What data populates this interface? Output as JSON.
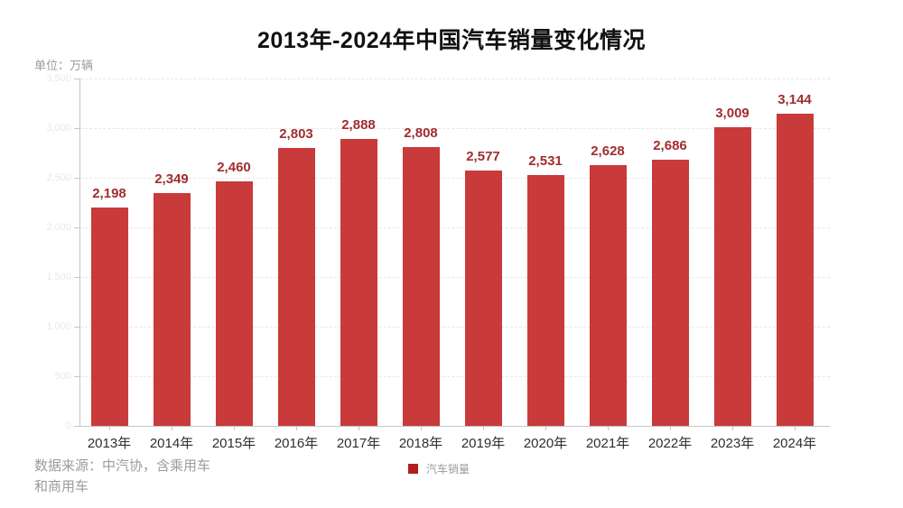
{
  "title": "2013年-2024年中国汽车销量变化情况",
  "unit_label": "单位：万辆",
  "source": {
    "line1": "数据来源：中汽协，含乘用车",
    "line2": "和商用车"
  },
  "legend": {
    "label": "汽车销量",
    "swatch_color": "#b21d1d"
  },
  "colors": {
    "bar": "#c93a3a",
    "value_label": "#a12e2e",
    "grid": "#e7e7e7",
    "axis": "#c6c6c6",
    "y_tick_label": "#e9e9e9",
    "x_tick_label": "#2f2f2f",
    "muted_text": "#9b9b9b",
    "title_text": "#111111",
    "legend_swatch": "#b21d1d"
  },
  "chart_data": {
    "type": "bar",
    "title": "2013年-2024年中国汽车销量变化情况",
    "ylabel": "单位：万辆",
    "series_name": "汽车销量",
    "categories": [
      "2013年",
      "2014年",
      "2015年",
      "2016年",
      "2017年",
      "2018年",
      "2019年",
      "2020年",
      "2021年",
      "2022年",
      "2023年",
      "2024年"
    ],
    "values": [
      2198,
      2349,
      2460,
      2803,
      2888,
      2808,
      2577,
      2531,
      2628,
      2686,
      3009,
      3144
    ],
    "value_labels": [
      "2,198",
      "2,349",
      "2,460",
      "2,803",
      "2,888",
      "2,808",
      "2,577",
      "2,531",
      "2,628",
      "2,686",
      "3,009",
      "3,144"
    ],
    "ylim": [
      0,
      3500
    ],
    "ytick_interval": 500,
    "ytick_labels": [
      "3,500",
      "3,000",
      "2,500",
      "2,000",
      "1,500",
      "1,000",
      "500",
      "0"
    ],
    "grid": "horizontal-dashed",
    "legend_position": "bottom-center",
    "bar_color": "#c93a3a"
  }
}
